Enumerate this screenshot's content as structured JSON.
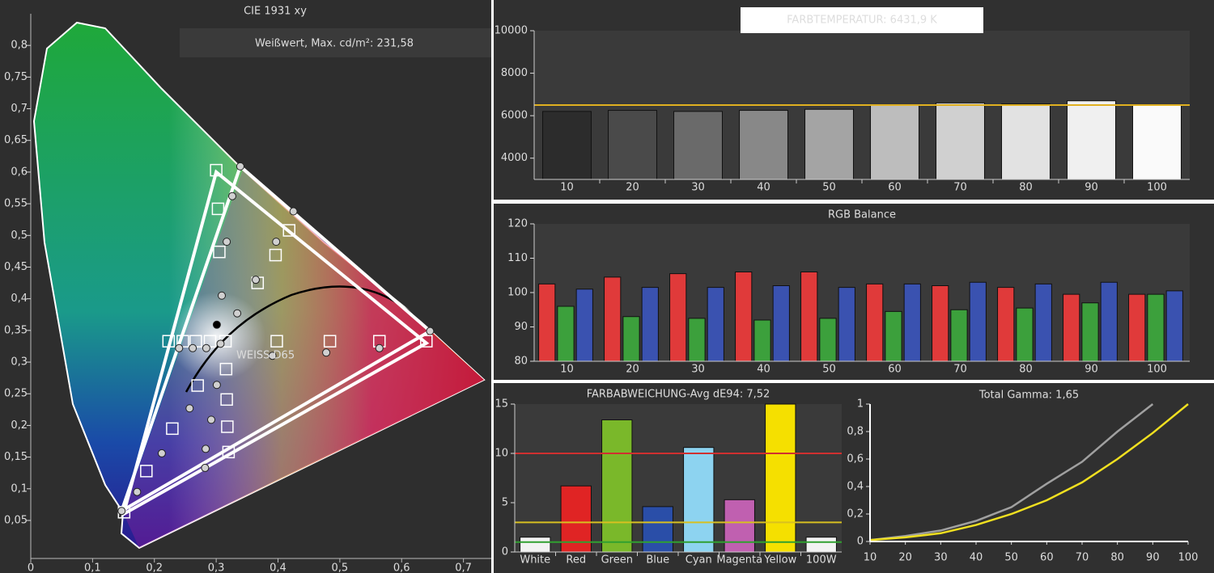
{
  "chart_data": [
    {
      "type": "scatter",
      "title": "CIE 1931 xy",
      "annotation": "Weißwert, Max. cd/m²: 231,58",
      "label": "WEISS D65",
      "xlim": [
        0,
        0.745
      ],
      "ylim": [
        -0.01,
        0.85
      ],
      "xticks": [
        0,
        {
          "value": 0.1,
          "label": "0,1"
        },
        {
          "value": 0.2,
          "label": "0,2"
        },
        {
          "value": 0.3,
          "label": "0,3"
        },
        {
          "value": 0.4,
          "label": "0,4"
        },
        {
          "value": 0.5,
          "label": "0,5"
        },
        {
          "value": 0.6,
          "label": "0,6"
        },
        {
          "value": 0.7,
          "label": "0,7"
        }
      ],
      "yticks": [
        {
          "value": 0.05,
          "label": "0,05"
        },
        {
          "value": 0.1,
          "label": "0,1"
        },
        {
          "value": 0.15,
          "label": "0,15"
        },
        {
          "value": 0.2,
          "label": "0,2"
        },
        {
          "value": 0.25,
          "label": "0,25"
        },
        {
          "value": 0.3,
          "label": "0,3"
        },
        {
          "value": 0.35,
          "label": "0,35"
        },
        {
          "value": 0.4,
          "label": "0,4"
        },
        {
          "value": 0.45,
          "label": "0,45"
        },
        {
          "value": 0.5,
          "label": "0,5"
        },
        {
          "value": 0.55,
          "label": "0,55"
        },
        {
          "value": 0.6,
          "label": "0,6"
        },
        {
          "value": 0.65,
          "label": "0,65"
        },
        {
          "value": 0.7,
          "label": "0,7"
        },
        {
          "value": 0.75,
          "label": "0,75"
        },
        {
          "value": 0.8,
          "label": "0,8"
        }
      ],
      "series": [
        {
          "marker": "polygon",
          "color": "#ffffff",
          "x": [
            0.64,
            0.3,
            0.15
          ],
          "y": [
            0.33,
            0.6,
            0.06
          ]
        },
        {
          "marker": "polygon",
          "color": "#ffffff",
          "x": [
            0.646,
            0.339,
            0.147
          ],
          "y": [
            0.349,
            0.609,
            0.065
          ]
        },
        {
          "marker": "square",
          "color": "#ffffff",
          "x": [
            0.3,
            0.303,
            0.305,
            0.367,
            0.396,
            0.418,
            0.64,
            0.564,
            0.484,
            0.398,
            0.315,
            0.29,
            0.267,
            0.246,
            0.223,
            0.316,
            0.317,
            0.318,
            0.32,
            0.27,
            0.229,
            0.187,
            0.151
          ],
          "y": [
            0.603,
            0.542,
            0.474,
            0.425,
            0.469,
            0.508,
            0.333,
            0.333,
            0.333,
            0.333,
            0.333,
            0.333,
            0.333,
            0.333,
            0.333,
            0.289,
            0.241,
            0.198,
            0.158,
            0.263,
            0.195,
            0.128,
            0.063
          ]
        },
        {
          "marker": "circle",
          "color": "#d0d0d0",
          "x": [
            0.339,
            0.326,
            0.317,
            0.309,
            0.334,
            0.364,
            0.397,
            0.425,
            0.646,
            0.564,
            0.478,
            0.391,
            0.307,
            0.284,
            0.262,
            0.24,
            0.301,
            0.292,
            0.283,
            0.282,
            0.257,
            0.212,
            0.172,
            0.147
          ],
          "y": [
            0.609,
            0.562,
            0.49,
            0.405,
            0.377,
            0.43,
            0.49,
            0.538,
            0.349,
            0.322,
            0.315,
            0.31,
            0.329,
            0.322,
            0.322,
            0.322,
            0.264,
            0.209,
            0.163,
            0.133,
            0.227,
            0.156,
            0.095,
            0.065
          ]
        },
        {
          "marker": "circle",
          "color": "#000000",
          "x": [
            0.301
          ],
          "y": [
            0.359
          ]
        }
      ]
    },
    {
      "type": "bar",
      "title": "FARBTEMPERATUR: 6431,9 K",
      "categories": [
        "10",
        "20",
        "30",
        "40",
        "50",
        "60",
        "70",
        "80",
        "90",
        "100"
      ],
      "values": [
        6200,
        6250,
        6200,
        6250,
        6300,
        6500,
        6600,
        6550,
        6700,
        6500
      ],
      "colors": [
        "#2c2c2c",
        "#4a4a4a",
        "#6a6a6a",
        "#888888",
        "#a4a4a4",
        "#bdbdbd",
        "#d0d0d0",
        "#e2e2e2",
        "#f0f0f0",
        "#fafafa"
      ],
      "ylim": [
        3000,
        10000
      ],
      "yticks": [
        4000,
        6000,
        8000,
        10000
      ],
      "reference_lines": [
        {
          "value": 6500,
          "color": "#e0b020"
        }
      ]
    },
    {
      "type": "grouped-bar",
      "title": "RGB Balance",
      "categories": [
        "10",
        "20",
        "30",
        "40",
        "50",
        "60",
        "70",
        "80",
        "90",
        "100"
      ],
      "series": [
        {
          "color": "#e03a3a",
          "values": [
            102.5,
            104.5,
            105.5,
            106,
            106,
            102.5,
            102,
            101.5,
            99.5,
            99.5
          ]
        },
        {
          "color": "#3ca03c",
          "values": [
            96,
            93,
            92.5,
            92,
            92.5,
            94.5,
            95,
            95.5,
            97,
            99.5
          ]
        },
        {
          "color": "#3a52b0",
          "values": [
            101,
            101.5,
            101.5,
            102,
            101.5,
            102.5,
            103,
            102.5,
            103,
            100.5
          ]
        }
      ],
      "ylim": [
        80,
        120
      ],
      "yticks": [
        80,
        90,
        100,
        110,
        120
      ]
    },
    {
      "type": "bar",
      "title": "FARBABWEICHUNG-Avg dE94: 7,52",
      "categories": [
        "White",
        "Red",
        "Green",
        "Blue",
        "Cyan",
        "Magenta",
        "Yellow",
        "100W"
      ],
      "values": [
        1.5,
        6.7,
        13.4,
        4.6,
        10.6,
        5.3,
        15,
        1.5
      ],
      "colors": [
        "#f2f2f2",
        "#e02424",
        "#7ab82a",
        "#2a4ea8",
        "#8dd3f0",
        "#c060b0",
        "#f5e000",
        "#f2f2f2"
      ],
      "ylim": [
        0,
        15
      ],
      "yticks": [
        0,
        5,
        10,
        15
      ],
      "reference_lines": [
        {
          "value": 10,
          "color": "#d03030"
        },
        {
          "value": 3,
          "color": "#d8c020"
        },
        {
          "value": 1,
          "color": "#30a030"
        }
      ]
    },
    {
      "type": "line",
      "title": "Total Gamma: 1,65",
      "x": [
        10,
        20,
        30,
        40,
        50,
        60,
        70,
        80,
        90,
        100
      ],
      "series": [
        {
          "color": "#a0a0a0",
          "values": [
            0.01,
            0.04,
            0.08,
            0.15,
            0.25,
            0.42,
            0.58,
            0.8,
            1.0,
            null
          ]
        },
        {
          "color": "#f0e020",
          "values": [
            0.01,
            0.03,
            0.06,
            0.12,
            0.2,
            0.3,
            0.43,
            0.6,
            0.79,
            1.0
          ]
        }
      ],
      "xlim": [
        10,
        100
      ],
      "xticks": [
        10,
        20,
        30,
        40,
        50,
        60,
        70,
        80,
        90,
        100
      ],
      "ylim": [
        0,
        1
      ],
      "yticks": [
        0,
        {
          "value": 0.2,
          "label": "0,2"
        },
        {
          "value": 0.4,
          "label": "0,4"
        },
        {
          "value": 0.6,
          "label": "0,6"
        },
        {
          "value": 0.8,
          "label": "0,8"
        },
        1
      ]
    }
  ]
}
